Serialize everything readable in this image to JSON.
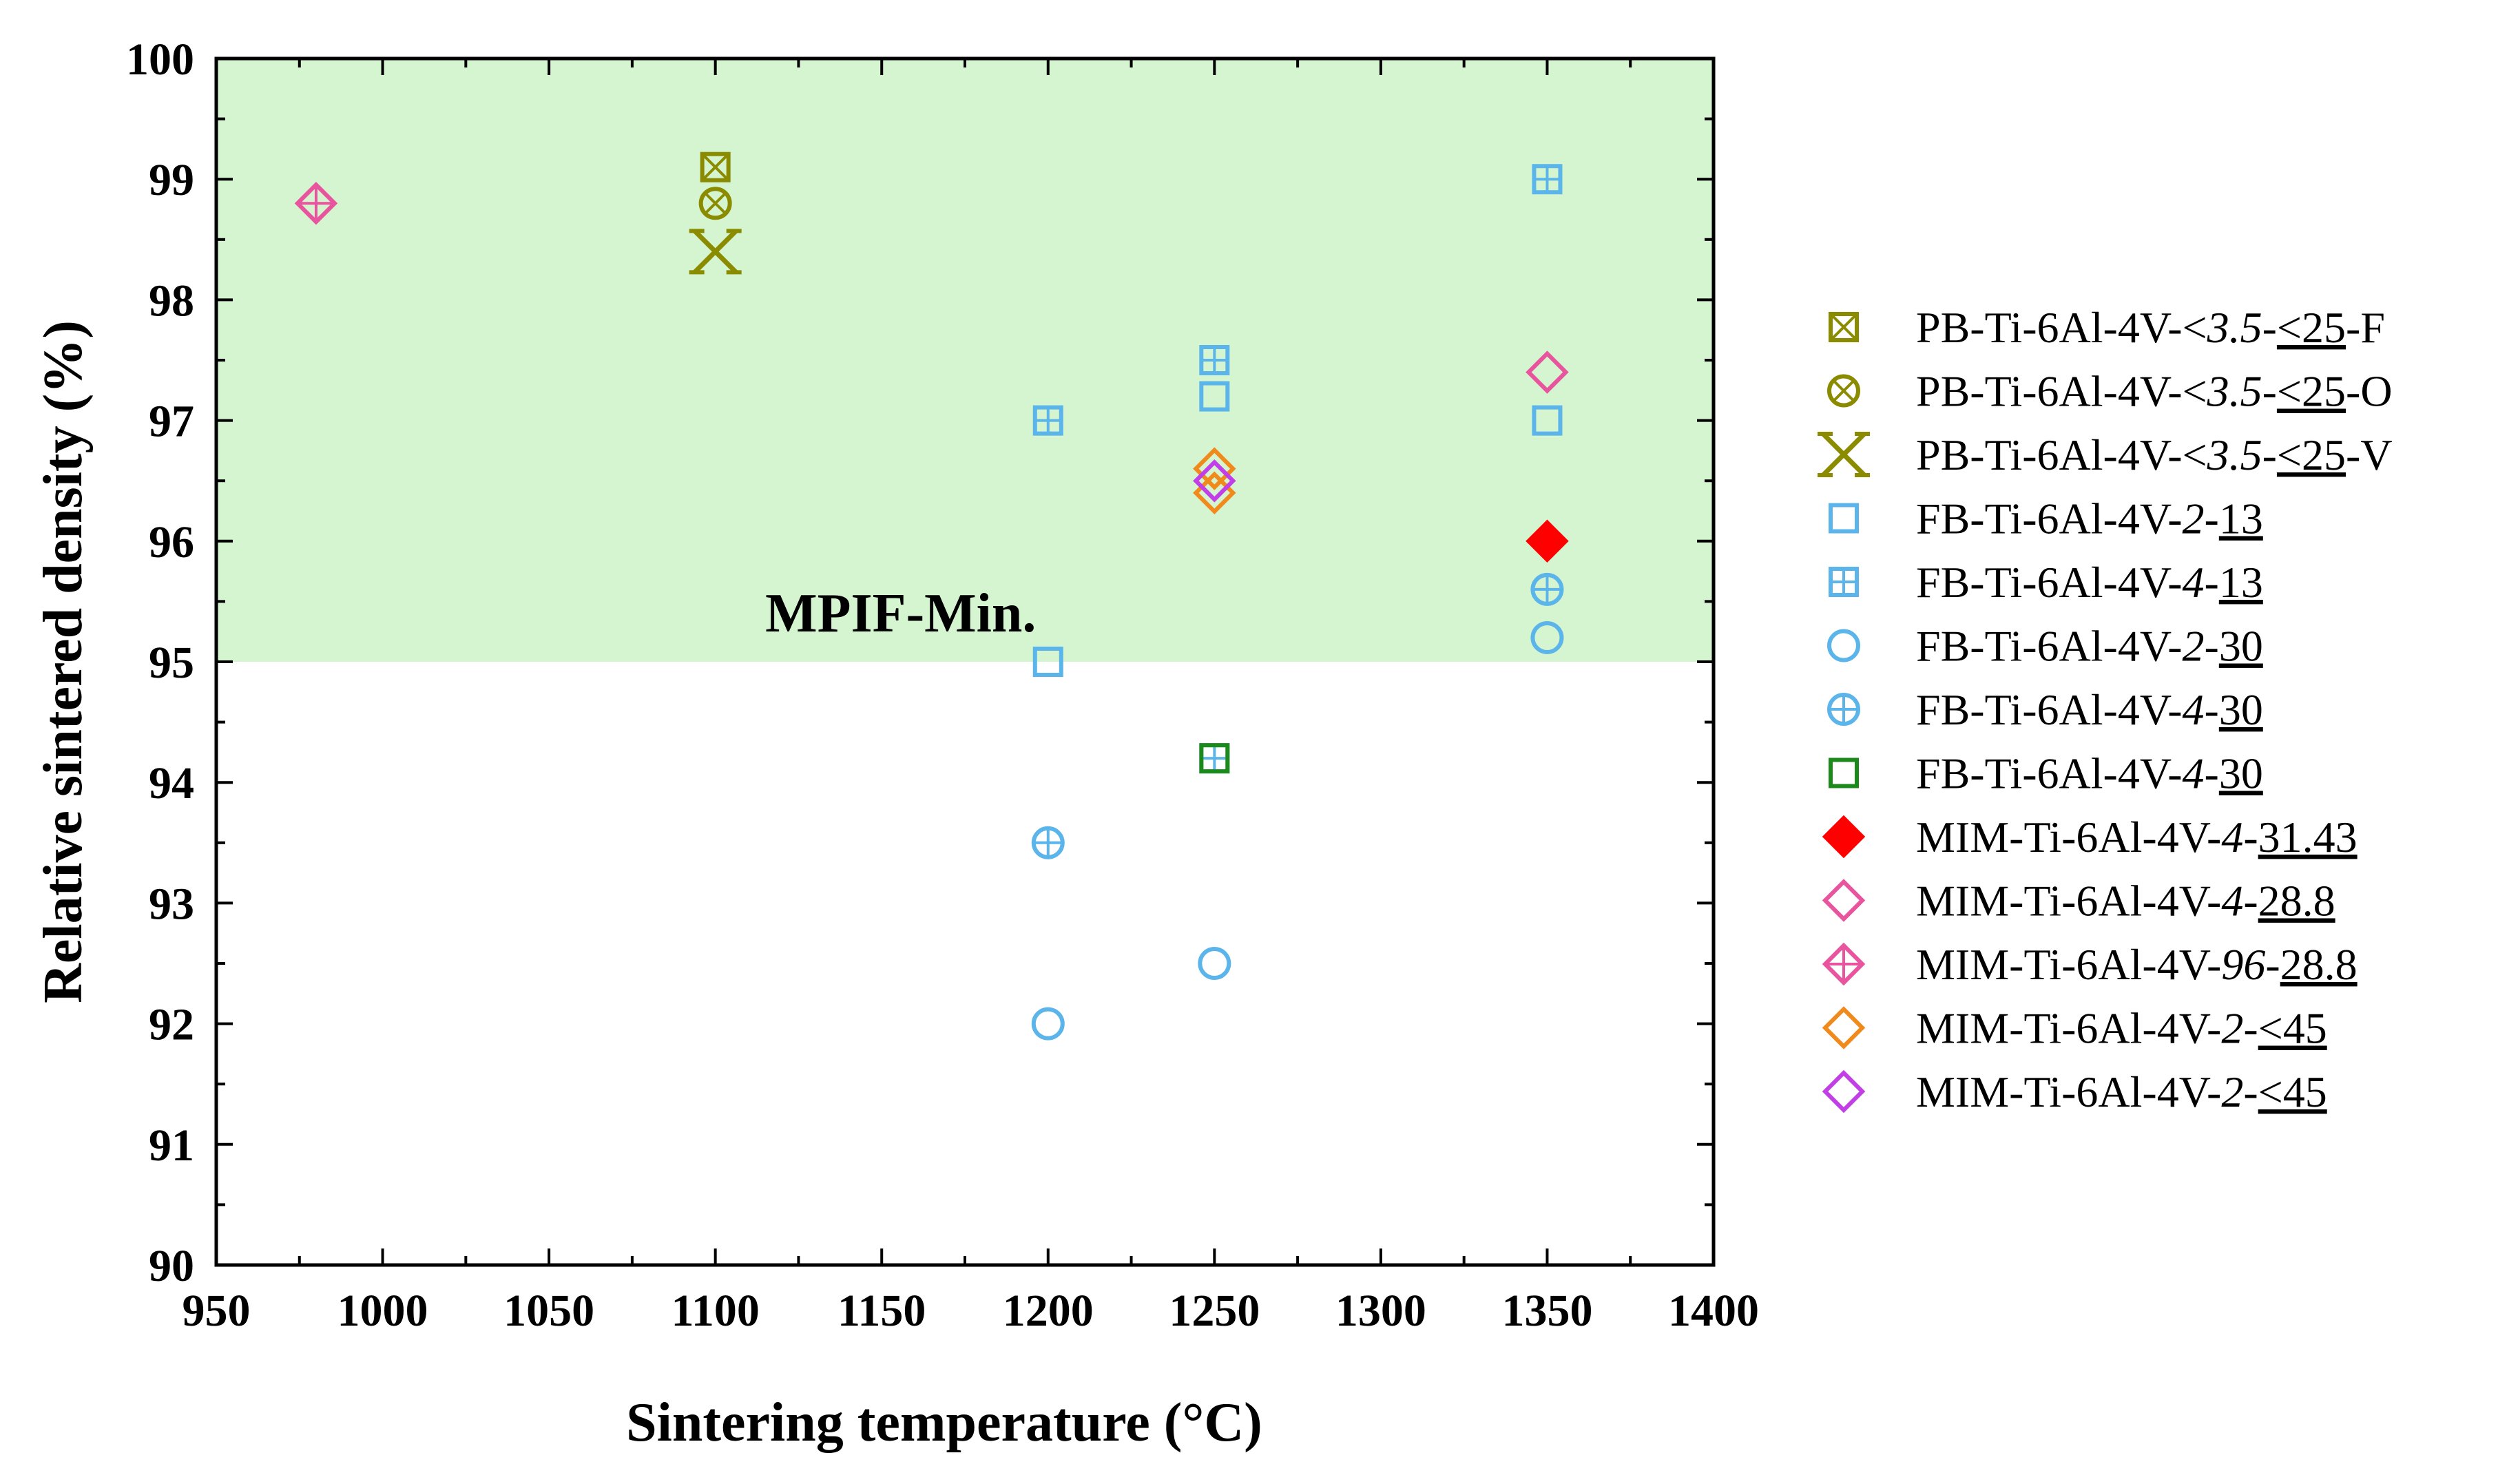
{
  "chart_data": {
    "type": "scatter",
    "title": "",
    "xlabel": "Sintering temperature (°C)",
    "ylabel": "Relative sintered density (%)",
    "xlim": [
      950,
      1400
    ],
    "ylim": [
      90,
      100
    ],
    "xticks": [
      950,
      1000,
      1050,
      1100,
      1150,
      1200,
      1250,
      1300,
      1350,
      1400
    ],
    "yticks": [
      90,
      91,
      92,
      93,
      94,
      95,
      96,
      97,
      98,
      99,
      100
    ],
    "grid": false,
    "legend_position": "right",
    "shaded_region": {
      "ymin": 95,
      "ymax": 100,
      "color": "#d4f5cf",
      "label": "MPIF-Min."
    },
    "series": [
      {
        "name": "PB-Ti-6Al-4V-<3.5-≤25-F",
        "parts": [
          {
            "t": "PB-Ti-6Al-4V-<"
          },
          {
            "t": "3.5",
            "i": true
          },
          {
            "t": "-"
          },
          {
            "t": "<25",
            "u": true
          },
          {
            "t": "-F"
          }
        ],
        "marker": "square-x",
        "color": "#8b8b00",
        "filled": false,
        "points": [
          [
            1100,
            99.1
          ]
        ]
      },
      {
        "name": "PB-Ti-6Al-4V-<3.5-≤25-O",
        "parts": [
          {
            "t": "PB-Ti-6Al-4V-<"
          },
          {
            "t": "3.5",
            "i": true
          },
          {
            "t": "-"
          },
          {
            "t": "<25",
            "u": true
          },
          {
            "t": "-O"
          }
        ],
        "marker": "circle-x",
        "color": "#8b8b00",
        "filled": false,
        "points": [
          [
            1100,
            98.8
          ]
        ]
      },
      {
        "name": "PB-Ti-6Al-4V-<3.5-≤25-V",
        "parts": [
          {
            "t": "PB-Ti-6Al-4V-<"
          },
          {
            "t": "3.5",
            "i": true
          },
          {
            "t": "-"
          },
          {
            "t": "<25",
            "u": true
          },
          {
            "t": "-V"
          }
        ],
        "marker": "bowtie-x",
        "color": "#8b8b00",
        "filled": false,
        "points": [
          [
            1100,
            98.4
          ]
        ]
      },
      {
        "name": "FB-Ti-6Al-4V-2-13",
        "parts": [
          {
            "t": "FB-Ti-6Al-4V-"
          },
          {
            "t": "2",
            "i": true
          },
          {
            "t": "-"
          },
          {
            "t": "13",
            "u": true
          }
        ],
        "marker": "square",
        "color": "#5bb5ea",
        "filled": false,
        "points": [
          [
            1200,
            95.0
          ],
          [
            1250,
            97.2
          ],
          [
            1350,
            97.0
          ]
        ]
      },
      {
        "name": "FB-Ti-6Al-4V-4-13",
        "parts": [
          {
            "t": "FB-Ti-6Al-4V-"
          },
          {
            "t": "4",
            "i": true
          },
          {
            "t": "-"
          },
          {
            "t": "13",
            "u": true
          }
        ],
        "marker": "square-plus",
        "color": "#5bb5ea",
        "filled": false,
        "points": [
          [
            1200,
            97.0
          ],
          [
            1250,
            97.5
          ],
          [
            1350,
            99.0
          ],
          [
            1250,
            94.2
          ]
        ]
      },
      {
        "name": "FB-Ti-6Al-4V-2-30",
        "parts": [
          {
            "t": "FB-Ti-6Al-4V-"
          },
          {
            "t": "2",
            "i": true
          },
          {
            "t": "-"
          },
          {
            "t": "30",
            "u": true
          }
        ],
        "marker": "circle",
        "color": "#5bb5ea",
        "filled": false,
        "points": [
          [
            1200,
            92.0
          ],
          [
            1250,
            92.5
          ],
          [
            1350,
            95.2
          ]
        ]
      },
      {
        "name": "FB-Ti-6Al-4V-4-30",
        "parts": [
          {
            "t": "FB-Ti-6Al-4V-"
          },
          {
            "t": "4",
            "i": true
          },
          {
            "t": "-"
          },
          {
            "t": "30",
            "u": true
          }
        ],
        "marker": "circle-plus",
        "color": "#5bb5ea",
        "filled": false,
        "points": [
          [
            1200,
            93.5
          ],
          [
            1350,
            95.6
          ]
        ]
      },
      {
        "name": "FB-Ti-6Al-4V-4-30",
        "parts": [
          {
            "t": "FB-Ti-6Al-4V-"
          },
          {
            "t": "4",
            "i": true
          },
          {
            "t": "-"
          },
          {
            "t": "30",
            "u": true
          }
        ],
        "marker": "square",
        "color": "#1b8a1b",
        "filled": false,
        "points": [
          [
            1250,
            94.2
          ]
        ]
      },
      {
        "name": "MIM-Ti-6Al-4V-4-31.43",
        "parts": [
          {
            "t": "MIM-Ti-6Al-4V-"
          },
          {
            "t": "4",
            "i": true
          },
          {
            "t": "-"
          },
          {
            "t": "31.43",
            "u": true
          }
        ],
        "marker": "diamond",
        "color": "#ff0000",
        "filled": true,
        "points": [
          [
            1350,
            96.0
          ]
        ]
      },
      {
        "name": "MIM-Ti-6Al-4V-4-28.8",
        "parts": [
          {
            "t": "MIM-Ti-6Al-4V-"
          },
          {
            "t": "4",
            "i": true
          },
          {
            "t": "-"
          },
          {
            "t": "28.8",
            "u": true
          }
        ],
        "marker": "diamond",
        "color": "#e8549e",
        "filled": false,
        "points": [
          [
            1350,
            97.4
          ]
        ]
      },
      {
        "name": "MIM-Ti-6Al-4V-96-28.8",
        "parts": [
          {
            "t": "MIM-Ti-6Al-4V-"
          },
          {
            "t": "96",
            "i": true
          },
          {
            "t": "-"
          },
          {
            "t": "28.8",
            "u": true
          }
        ],
        "marker": "diamond-plus",
        "color": "#e8549e",
        "filled": false,
        "points": [
          [
            980,
            98.8
          ]
        ]
      },
      {
        "name": "MIM-Ti-6Al-4V-2-<45",
        "parts": [
          {
            "t": "MIM-Ti-6Al-4V-"
          },
          {
            "t": "2",
            "i": true
          },
          {
            "t": "-"
          },
          {
            "t": "<45",
            "u": true
          }
        ],
        "marker": "diamond",
        "color": "#f08a1c",
        "filled": false,
        "points": [
          [
            1250,
            96.6
          ],
          [
            1250,
            96.4
          ]
        ]
      },
      {
        "name": "MIM-Ti-6Al-4V-2-<45",
        "parts": [
          {
            "t": "MIM-Ti-6Al-4V-"
          },
          {
            "t": "2",
            "i": true
          },
          {
            "t": "-"
          },
          {
            "t": "<45",
            "u": true
          }
        ],
        "marker": "diamond",
        "color": "#c23ee6",
        "filled": false,
        "points": [
          [
            1250,
            96.5
          ]
        ]
      }
    ]
  }
}
